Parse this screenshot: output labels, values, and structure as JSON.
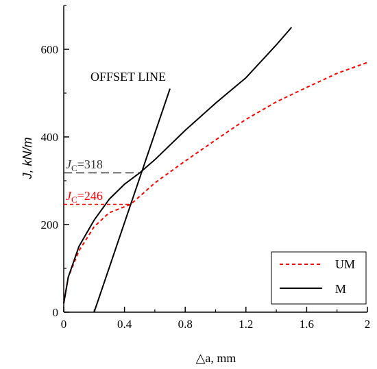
{
  "chart_data": {
    "type": "line",
    "xlabel": "△a, mm",
    "ylabel": "J, kN/m",
    "xlim": [
      0,
      2
    ],
    "ylim": [
      0,
      700
    ],
    "x_ticks": [
      0,
      0.4,
      0.8,
      1.2,
      1.6,
      2
    ],
    "x_tick_labels": [
      "0",
      "0.4",
      "0.8",
      "1.2",
      "1.6",
      "2"
    ],
    "y_ticks": [
      0,
      200,
      400,
      600
    ],
    "y_tick_labels": [
      "0",
      "200",
      "400",
      "600"
    ],
    "grid": false,
    "legend_position": "bottom-right",
    "series": [
      {
        "name": "UM",
        "style": "dashed",
        "color": "#ff0000",
        "points": [
          [
            0,
            20
          ],
          [
            0.03,
            80
          ],
          [
            0.1,
            140
          ],
          [
            0.2,
            195
          ],
          [
            0.3,
            227
          ],
          [
            0.44,
            246
          ],
          [
            0.6,
            295
          ],
          [
            0.8,
            345
          ],
          [
            1.0,
            393
          ],
          [
            1.2,
            440
          ],
          [
            1.4,
            480
          ],
          [
            1.6,
            513
          ],
          [
            1.8,
            545
          ],
          [
            2.0,
            570
          ]
        ]
      },
      {
        "name": "M",
        "style": "solid",
        "color": "#000000",
        "points": [
          [
            0,
            20
          ],
          [
            0.03,
            80
          ],
          [
            0.1,
            150
          ],
          [
            0.2,
            210
          ],
          [
            0.3,
            258
          ],
          [
            0.4,
            292
          ],
          [
            0.5,
            318
          ],
          [
            0.6,
            348
          ],
          [
            0.8,
            415
          ],
          [
            1.0,
            477
          ],
          [
            1.2,
            535
          ],
          [
            1.4,
            610
          ],
          [
            1.5,
            650
          ]
        ]
      },
      {
        "name": "OFFSET LINE",
        "style": "solid",
        "color": "#000000",
        "points": [
          [
            0.2,
            0
          ],
          [
            0.7,
            510
          ]
        ]
      }
    ],
    "annotations": [
      {
        "text_main": "J",
        "text_sub": "C",
        "text_value": "=318",
        "value": 318,
        "color": "#333333"
      },
      {
        "text_main": "J",
        "text_sub": "C",
        "text_value": "=246",
        "value": 246,
        "color": "#ff0000"
      },
      {
        "text": "OFFSET LINE",
        "color": "#000000"
      }
    ]
  }
}
